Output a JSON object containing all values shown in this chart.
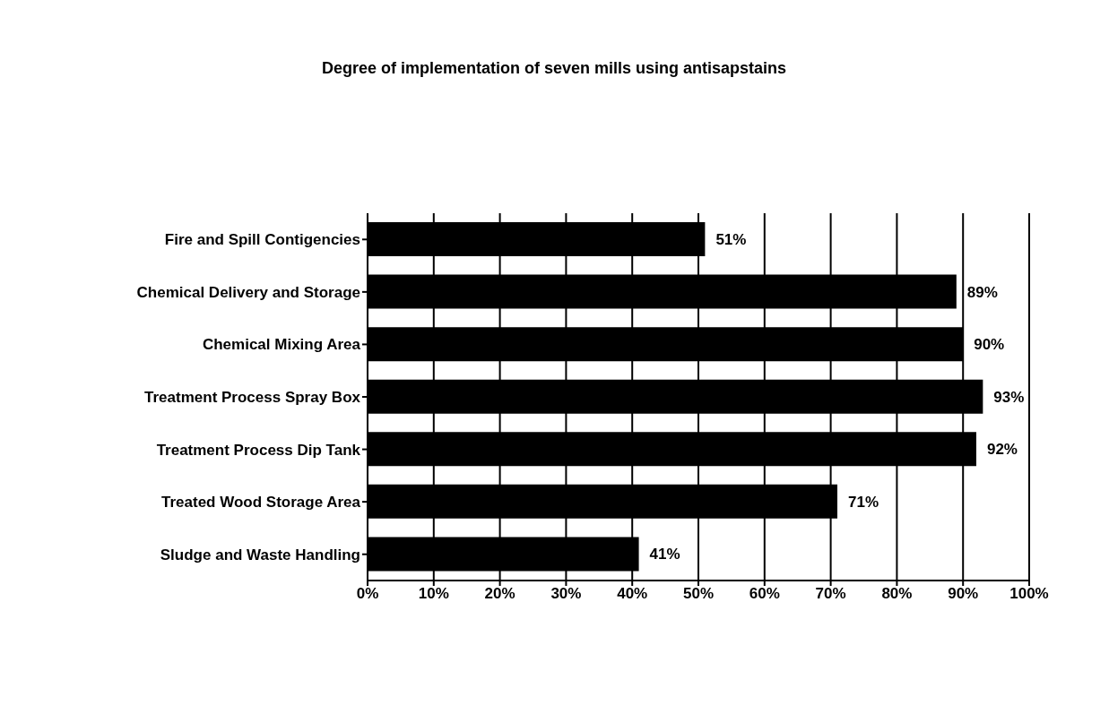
{
  "chart_data": {
    "type": "bar",
    "orientation": "horizontal",
    "title": "Degree of implementation of seven mills using antisapstains",
    "categories": [
      "Fire and Spill Contigencies",
      "Chemical Delivery and Storage",
      "Chemical Mixing Area",
      "Treatment Process  Spray Box",
      "Treatment Process  Dip Tank",
      "Treated Wood Storage Area",
      "Sludge and Waste Handling"
    ],
    "values": [
      51,
      89,
      90,
      93,
      92,
      71,
      41
    ],
    "value_labels": [
      "51%",
      "89%",
      "90%",
      "93%",
      "92%",
      "71%",
      "41%"
    ],
    "color": "#000000",
    "xlim": [
      0,
      100
    ],
    "xticks": [
      {
        "value": 0,
        "label": "0%"
      },
      {
        "value": 10,
        "label": "10%"
      },
      {
        "value": 20,
        "label": "20%"
      },
      {
        "value": 30,
        "label": "30%"
      },
      {
        "value": 40,
        "label": "40%"
      },
      {
        "value": 50,
        "label": "50%"
      },
      {
        "value": 60,
        "label": "60%"
      },
      {
        "value": 70,
        "label": "70%"
      },
      {
        "value": 80,
        "label": "80%"
      },
      {
        "value": 90,
        "label": "90%"
      },
      {
        "value": 100,
        "label": "100%"
      }
    ],
    "grid": "x",
    "legend": false
  }
}
